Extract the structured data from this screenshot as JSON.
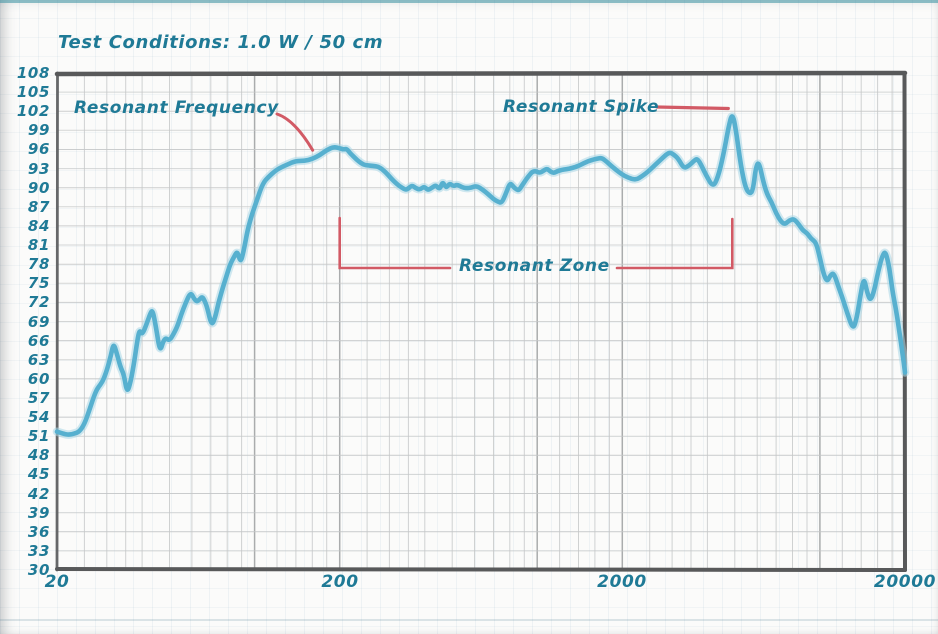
{
  "page": {
    "title": "Test Conditions: 1.0 W / 50 cm"
  },
  "annotations": {
    "resonant_frequency": {
      "label": "Resonant Frequency",
      "anchor_hz": 200,
      "anchor_db": 96.2
    },
    "resonant_spike": {
      "label": "Resonant Spike",
      "anchor_hz": 4900,
      "anchor_db": 101.8
    },
    "resonant_zone": {
      "label": "Resonant Zone",
      "from_hz": 200,
      "to_hz": 4900
    }
  },
  "theme": {
    "text_teal": "#1f7a96",
    "curve": "#57b0cf",
    "curve_halo": "#a9d7e6",
    "annotation_red": "#d25a65",
    "frame_gray": "#58595a",
    "grid_minor": "#c5c7c8",
    "grid_major": "#a6a8a9"
  },
  "chart_data": {
    "type": "line",
    "title": "Test Conditions: 1.0 W / 50 cm",
    "xlabel": "",
    "ylabel": "",
    "x_scale": "log",
    "xlim": [
      20,
      20000
    ],
    "ylim": [
      30,
      108
    ],
    "grid": true,
    "legend": "none",
    "xticks": [
      20,
      200,
      2000,
      20000
    ],
    "yticks": [
      108,
      105,
      102,
      99,
      96,
      93,
      90,
      87,
      84,
      81,
      78,
      75,
      72,
      69,
      66,
      63,
      60,
      57,
      54,
      51,
      48,
      45,
      42,
      39,
      36,
      33,
      30
    ],
    "x_gridlines": [
      25,
      30,
      35,
      40,
      50,
      60,
      70,
      80,
      90,
      100,
      120,
      140,
      160,
      180,
      200,
      250,
      300,
      350,
      400,
      500,
      600,
      700,
      800,
      900,
      1000,
      1200,
      1400,
      1600,
      1800,
      2000,
      2500,
      3000,
      3500,
      4000,
      5000,
      6000,
      7000,
      8000,
      9000,
      10000,
      12000,
      14000,
      16000,
      18000
    ],
    "x_gridlines_major": [
      100,
      200,
      1000,
      2000,
      10000
    ],
    "series": [
      {
        "name": "frequency-response-spl-db",
        "points": [
          [
            20,
            51.7
          ],
          [
            21,
            51.4
          ],
          [
            22,
            51.2
          ],
          [
            23,
            51.4
          ],
          [
            24,
            51.7
          ],
          [
            25,
            52.9
          ],
          [
            26,
            55.0
          ],
          [
            27,
            57.2
          ],
          [
            27.7,
            58.4
          ],
          [
            28.5,
            59.1
          ],
          [
            29.2,
            59.9
          ],
          [
            30,
            61.3
          ],
          [
            31,
            63.6
          ],
          [
            31.7,
            65.6
          ],
          [
            32.5,
            64.1
          ],
          [
            33.5,
            61.9
          ],
          [
            34.5,
            60.7
          ],
          [
            35.4,
            57.7
          ],
          [
            36.5,
            59.7
          ],
          [
            37.5,
            62.6
          ],
          [
            38.5,
            66.1
          ],
          [
            39.2,
            67.7
          ],
          [
            40,
            66.9
          ],
          [
            41.5,
            68.6
          ],
          [
            42.8,
            70.3
          ],
          [
            43.6,
            70.8
          ],
          [
            44.8,
            68.1
          ],
          [
            46.3,
            64.2
          ],
          [
            47.5,
            65.9
          ],
          [
            48.5,
            66.4
          ],
          [
            50,
            66.0
          ],
          [
            51.5,
            66.9
          ],
          [
            53.3,
            68.2
          ],
          [
            55,
            70.1
          ],
          [
            57,
            71.9
          ],
          [
            59.4,
            73.6
          ],
          [
            61,
            72.6
          ],
          [
            62.5,
            72.1
          ],
          [
            64,
            72.5
          ],
          [
            65.3,
            72.9
          ],
          [
            66.5,
            72.3
          ],
          [
            68,
            71.2
          ],
          [
            70.5,
            68.3
          ],
          [
            72.5,
            69.6
          ],
          [
            74.5,
            71.9
          ],
          [
            77.4,
            74.5
          ],
          [
            79.5,
            76.1
          ],
          [
            82,
            78.0
          ],
          [
            84.5,
            79.1
          ],
          [
            86.7,
            80.0
          ],
          [
            88,
            79.1
          ],
          [
            89.5,
            78.4
          ],
          [
            91.5,
            80.1
          ],
          [
            94.5,
            83.4
          ],
          [
            98,
            85.9
          ],
          [
            102,
            88.1
          ],
          [
            107,
            90.7
          ],
          [
            112,
            91.7
          ],
          [
            118,
            92.6
          ],
          [
            123,
            93.1
          ],
          [
            130,
            93.6
          ],
          [
            140,
            94.2
          ],
          [
            150,
            94.2
          ],
          [
            160,
            94.5
          ],
          [
            170,
            95.1
          ],
          [
            180,
            95.9
          ],
          [
            190,
            96.4
          ],
          [
            200,
            96.2
          ],
          [
            206,
            96.0
          ],
          [
            212,
            96.1
          ],
          [
            218,
            95.4
          ],
          [
            226,
            94.7
          ],
          [
            234,
            94.1
          ],
          [
            243,
            93.6
          ],
          [
            252,
            93.5
          ],
          [
            262,
            93.4
          ],
          [
            275,
            93.3
          ],
          [
            290,
            92.5
          ],
          [
            305,
            91.4
          ],
          [
            318,
            90.6
          ],
          [
            332,
            90.0
          ],
          [
            345,
            89.6
          ],
          [
            360,
            90.4
          ],
          [
            372,
            89.9
          ],
          [
            385,
            89.7
          ],
          [
            398,
            90.2
          ],
          [
            410,
            89.6
          ],
          [
            424,
            90.0
          ],
          [
            438,
            90.4
          ],
          [
            452,
            89.7
          ],
          [
            462,
            90.9
          ],
          [
            470,
            90.4
          ],
          [
            478,
            90.0
          ],
          [
            490,
            90.7
          ],
          [
            505,
            90.2
          ],
          [
            520,
            90.5
          ],
          [
            540,
            90.1
          ],
          [
            560,
            89.9
          ],
          [
            585,
            90.0
          ],
          [
            610,
            90.3
          ],
          [
            640,
            89.7
          ],
          [
            670,
            89.0
          ],
          [
            700,
            88.2
          ],
          [
            725,
            87.8
          ],
          [
            748,
            87.6
          ],
          [
            770,
            88.8
          ],
          [
            800,
            90.7
          ],
          [
            815,
            90.4
          ],
          [
            830,
            90.0
          ],
          [
            845,
            89.7
          ],
          [
            862,
            89.6
          ],
          [
            885,
            90.4
          ],
          [
            910,
            91.2
          ],
          [
            935,
            91.9
          ],
          [
            960,
            92.5
          ],
          [
            990,
            92.6
          ],
          [
            1020,
            92.3
          ],
          [
            1055,
            92.7
          ],
          [
            1085,
            93.0
          ],
          [
            1115,
            92.5
          ],
          [
            1145,
            92.3
          ],
          [
            1180,
            92.6
          ],
          [
            1220,
            92.8
          ],
          [
            1270,
            92.9
          ],
          [
            1330,
            93.1
          ],
          [
            1400,
            93.4
          ],
          [
            1470,
            93.9
          ],
          [
            1540,
            94.3
          ],
          [
            1610,
            94.5
          ],
          [
            1690,
            94.7
          ],
          [
            1760,
            94.1
          ],
          [
            1830,
            93.4
          ],
          [
            1900,
            92.8
          ],
          [
            1990,
            92.1
          ],
          [
            2090,
            91.6
          ],
          [
            2230,
            91.2
          ],
          [
            2350,
            91.8
          ],
          [
            2480,
            92.6
          ],
          [
            2630,
            93.7
          ],
          [
            2780,
            94.7
          ],
          [
            2930,
            95.6
          ],
          [
            3040,
            95.2
          ],
          [
            3150,
            94.6
          ],
          [
            3300,
            93.0
          ],
          [
            3450,
            93.5
          ],
          [
            3580,
            94.2
          ],
          [
            3680,
            94.6
          ],
          [
            3800,
            93.6
          ],
          [
            3950,
            92.0
          ],
          [
            4180,
            90.1
          ],
          [
            4350,
            91.5
          ],
          [
            4550,
            95.0
          ],
          [
            4750,
            99.5
          ],
          [
            4900,
            101.8
          ],
          [
            5050,
            99.0
          ],
          [
            5250,
            93.5
          ],
          [
            5450,
            90.0
          ],
          [
            5650,
            89.0
          ],
          [
            5800,
            89.6
          ],
          [
            5950,
            93.6
          ],
          [
            6100,
            93.9
          ],
          [
            6300,
            91.0
          ],
          [
            6500,
            89.0
          ],
          [
            6750,
            87.7
          ],
          [
            7000,
            86.0
          ],
          [
            7250,
            84.8
          ],
          [
            7500,
            84.2
          ],
          [
            7800,
            84.9
          ],
          [
            8100,
            85.1
          ],
          [
            8400,
            84.3
          ],
          [
            8700,
            83.3
          ],
          [
            9000,
            82.9
          ],
          [
            9300,
            82.0
          ],
          [
            9700,
            81.4
          ],
          [
            10000,
            79.0
          ],
          [
            10300,
            76.5
          ],
          [
            10600,
            75.2
          ],
          [
            10900,
            76.3
          ],
          [
            11200,
            76.6
          ],
          [
            11600,
            74.6
          ],
          [
            12000,
            72.8
          ],
          [
            12500,
            70.3
          ],
          [
            13100,
            67.7
          ],
          [
            13500,
            69.5
          ],
          [
            13900,
            73.0
          ],
          [
            14300,
            76.0
          ],
          [
            14700,
            73.5
          ],
          [
            15100,
            72.2
          ],
          [
            15600,
            74.0
          ],
          [
            16100,
            77.0
          ],
          [
            16700,
            79.6
          ],
          [
            17100,
            79.9
          ],
          [
            17600,
            77.5
          ],
          [
            18100,
            73.5
          ],
          [
            18600,
            70.8
          ],
          [
            19100,
            67.5
          ],
          [
            19600,
            64.0
          ],
          [
            20000,
            61.0
          ]
        ]
      }
    ]
  }
}
